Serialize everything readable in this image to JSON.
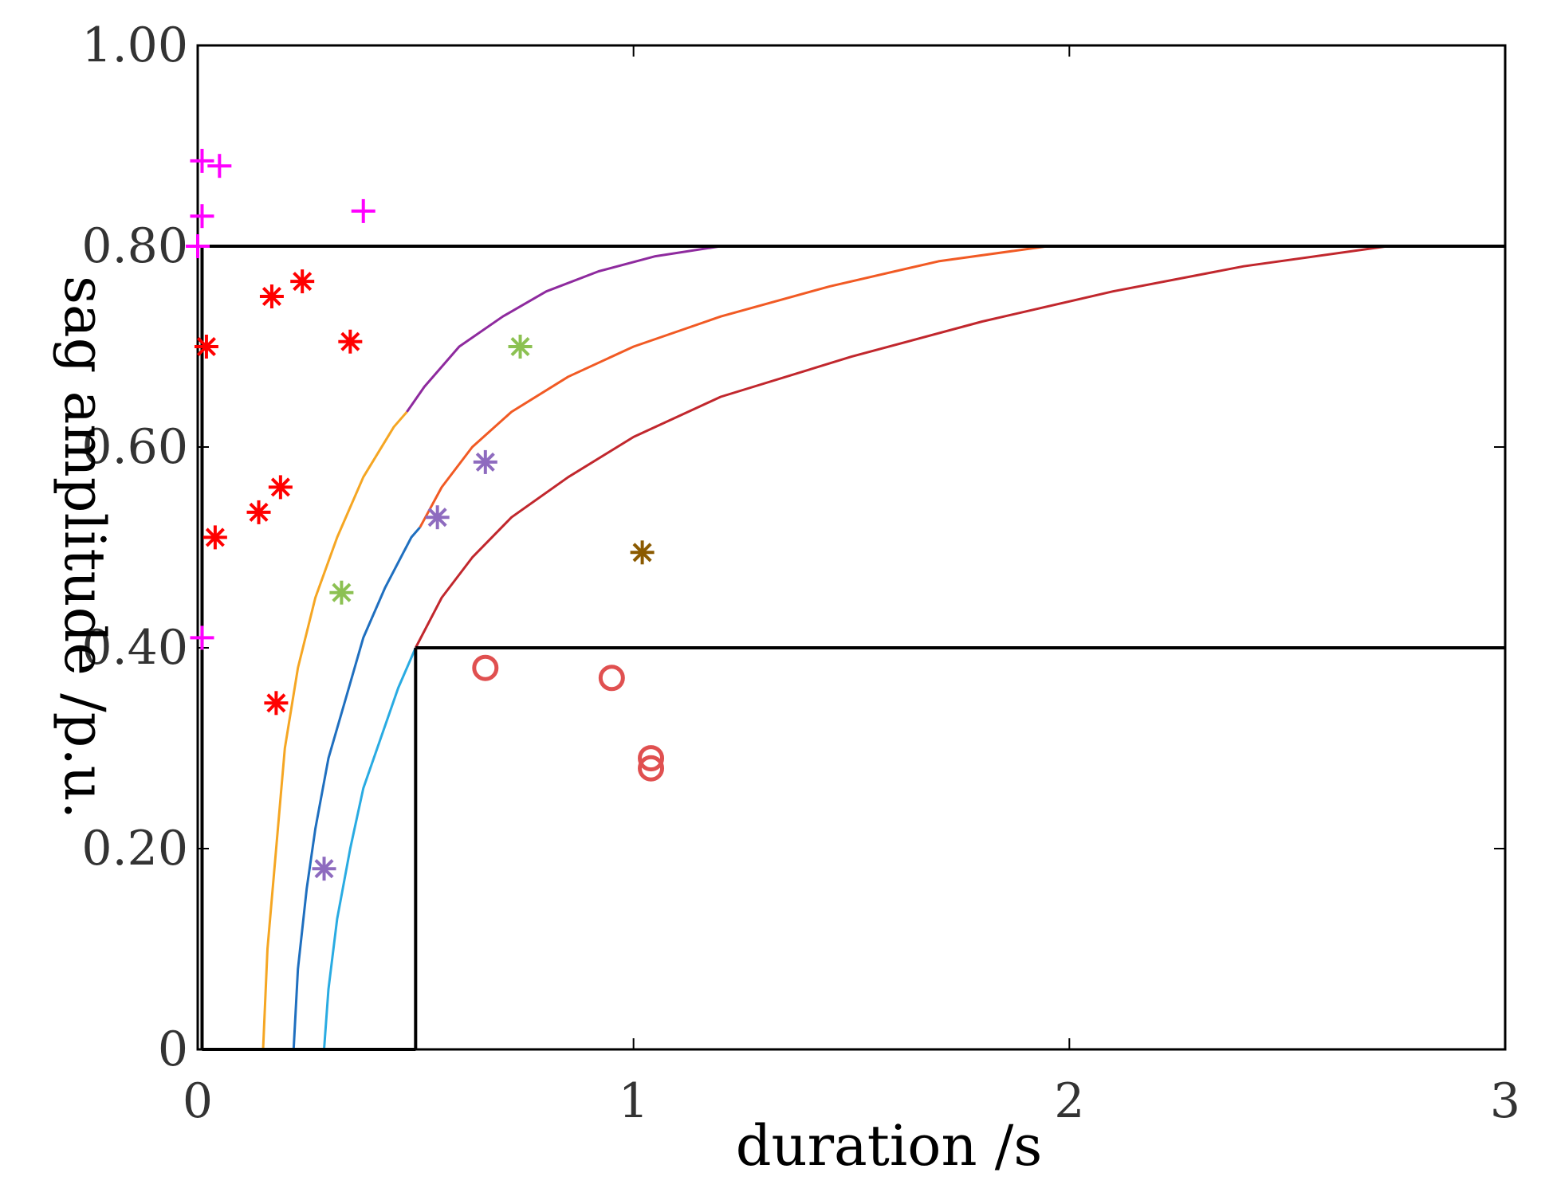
{
  "chart_data": {
    "type": "scatter",
    "title": "",
    "xlabel": "duration /s",
    "ylabel": "sag amplitude /p.u.",
    "xlim": [
      0,
      3
    ],
    "ylim": [
      0,
      1
    ],
    "grid": false,
    "x_ticks": [
      {
        "value": 0,
        "label": "0"
      },
      {
        "value": 1,
        "label": "1"
      },
      {
        "value": 2,
        "label": "2"
      },
      {
        "value": 3,
        "label": "3"
      }
    ],
    "y_ticks": [
      {
        "value": 0,
        "label": "0"
      },
      {
        "value": 0.2,
        "label": "0.20"
      },
      {
        "value": 0.4,
        "label": "0.40"
      },
      {
        "value": 0.6,
        "label": "0.60"
      },
      {
        "value": 0.8,
        "label": "0.80"
      },
      {
        "value": 1.0,
        "label": "1.00"
      }
    ],
    "boundaries": [
      {
        "name": "boundary-line-0.8",
        "x": [
          0.01,
          3
        ],
        "y": [
          0.8,
          0.8
        ],
        "color": "#000000"
      },
      {
        "name": "boundary-line-0.4",
        "x": [
          0.5,
          3
        ],
        "y": [
          0.4,
          0.4
        ],
        "color": "#000000"
      },
      {
        "name": "boundary-line-0.4-bottom",
        "x": [
          0.01,
          0.5
        ],
        "y": [
          0,
          0
        ],
        "color": "#000000"
      },
      {
        "name": "boundary-vertical-left",
        "x": [
          0.01,
          0.01
        ],
        "y": [
          0,
          0.8
        ],
        "color": "#000000"
      },
      {
        "name": "boundary-vertical-0.5",
        "x": [
          0.5,
          0.5
        ],
        "y": [
          0,
          0.4
        ],
        "color": "#000000"
      }
    ],
    "curves": [
      {
        "name": "curve-yellow",
        "color": "#f5a623",
        "x": [
          0.15,
          0.16,
          0.18,
          0.2,
          0.23,
          0.27,
          0.32,
          0.38,
          0.45,
          0.48
        ],
        "y": [
          0,
          0.1,
          0.2,
          0.3,
          0.38,
          0.45,
          0.51,
          0.57,
          0.62,
          0.635
        ]
      },
      {
        "name": "curve-purple",
        "color": "#8e2a9e",
        "x": [
          0.48,
          0.52,
          0.6,
          0.7,
          0.8,
          0.92,
          1.05,
          1.2,
          1.24
        ],
        "y": [
          0.635,
          0.66,
          0.7,
          0.73,
          0.755,
          0.775,
          0.79,
          0.8,
          0.8
        ]
      },
      {
        "name": "curve-blue",
        "color": "#1f6fbf",
        "x": [
          0.22,
          0.23,
          0.25,
          0.27,
          0.3,
          0.34,
          0.38,
          0.43,
          0.49,
          0.51
        ],
        "y": [
          0,
          0.08,
          0.16,
          0.22,
          0.29,
          0.35,
          0.41,
          0.46,
          0.51,
          0.52
        ]
      },
      {
        "name": "curve-orange",
        "color": "#f15a24",
        "x": [
          0.51,
          0.56,
          0.63,
          0.72,
          0.85,
          1.0,
          1.2,
          1.45,
          1.7,
          1.95
        ],
        "y": [
          0.52,
          0.56,
          0.6,
          0.635,
          0.67,
          0.7,
          0.73,
          0.76,
          0.785,
          0.8
        ]
      },
      {
        "name": "curve-cyan",
        "color": "#29abe2",
        "x": [
          0.29,
          0.3,
          0.32,
          0.35,
          0.38,
          0.42,
          0.46,
          0.5
        ],
        "y": [
          0,
          0.06,
          0.13,
          0.2,
          0.26,
          0.31,
          0.36,
          0.4
        ]
      },
      {
        "name": "curve-crimson",
        "color": "#c1272d",
        "x": [
          0.5,
          0.56,
          0.63,
          0.72,
          0.85,
          1.0,
          1.2,
          1.5,
          1.8,
          2.1,
          2.4,
          2.73
        ],
        "y": [
          0.4,
          0.45,
          0.49,
          0.53,
          0.57,
          0.61,
          0.65,
          0.69,
          0.725,
          0.755,
          0.78,
          0.8
        ]
      }
    ],
    "series": [
      {
        "name": "magenta-plus",
        "marker": "plus",
        "color": "#ff00ff",
        "x": [
          0.01,
          0.05,
          0.01,
          0.38,
          0.0,
          0.01
        ],
        "y": [
          0.885,
          0.88,
          0.83,
          0.835,
          0.8,
          0.41
        ]
      },
      {
        "name": "red-asterisk",
        "marker": "asterisk",
        "color": "#ff0000",
        "x": [
          0.02,
          0.17,
          0.24,
          0.35,
          0.04,
          0.14,
          0.19,
          0.18
        ],
        "y": [
          0.7,
          0.75,
          0.765,
          0.705,
          0.51,
          0.535,
          0.56,
          0.345
        ]
      },
      {
        "name": "green-asterisk",
        "marker": "asterisk",
        "color": "#8cc152",
        "x": [
          0.74,
          0.33
        ],
        "y": [
          0.7,
          0.455
        ]
      },
      {
        "name": "violet-asterisk",
        "marker": "asterisk",
        "color": "#8e6bbf",
        "x": [
          0.55,
          0.66,
          0.29
        ],
        "y": [
          0.53,
          0.585,
          0.18
        ]
      },
      {
        "name": "brown-asterisk",
        "marker": "asterisk",
        "color": "#8b5a00",
        "x": [
          1.02
        ],
        "y": [
          0.495
        ]
      },
      {
        "name": "red-circle",
        "marker": "circle",
        "color": "#e05050",
        "x": [
          0.66,
          0.95,
          1.04,
          1.04
        ],
        "y": [
          0.38,
          0.37,
          0.29,
          0.28
        ]
      }
    ]
  }
}
